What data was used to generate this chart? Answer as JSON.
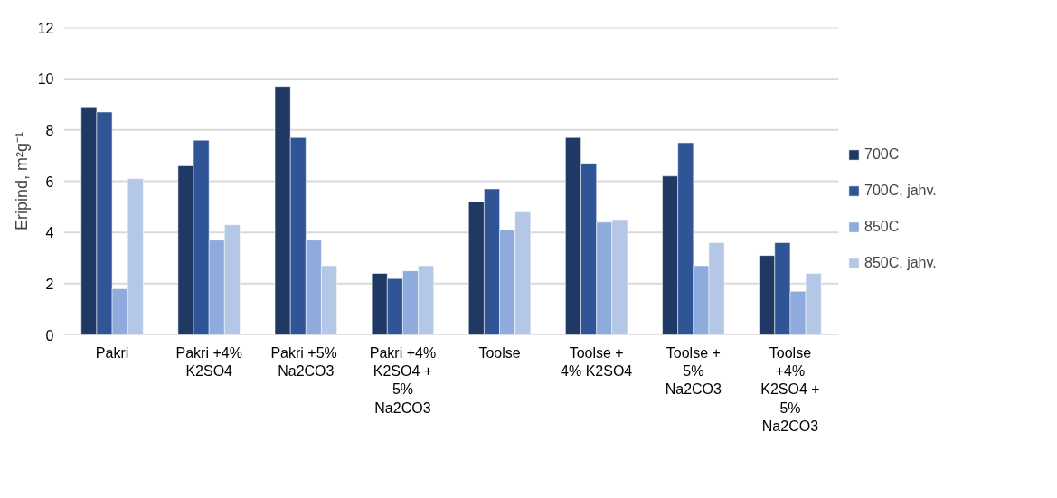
{
  "chart_data": {
    "type": "bar",
    "ylabel": "Eripind, m²g⁻¹",
    "categories": [
      "Pakri",
      "Pakri +4%\nK2SO4",
      "Pakri  +5%\nNa2CO3",
      "Pakri +4%\nK2SO4 +\n5%\nNa2CO3",
      "Toolse",
      "Toolse +\n4% K2SO4",
      "Toolse +\n5%\nNa2CO3",
      "Toolse\n+4%\nK2SO4 +\n5%\nNa2CO3"
    ],
    "series": [
      {
        "name": "700C",
        "color": "#203864",
        "values": [
          8.9,
          6.6,
          9.7,
          2.4,
          5.2,
          7.7,
          6.2,
          3.1
        ]
      },
      {
        "name": "700C, jahv.",
        "color": "#2f5597",
        "values": [
          8.7,
          7.6,
          7.7,
          2.2,
          5.7,
          6.7,
          7.5,
          3.6
        ]
      },
      {
        "name": "850C",
        "color": "#8faadc",
        "values": [
          1.8,
          3.7,
          3.7,
          2.5,
          4.1,
          4.4,
          2.7,
          1.7
        ]
      },
      {
        "name": "850C, jahv.",
        "color": "#b4c7e7",
        "values": [
          6.1,
          4.3,
          2.7,
          2.7,
          4.8,
          4.5,
          3.6,
          2.4
        ]
      }
    ],
    "ylim": [
      0,
      12
    ],
    "yticks": [
      0,
      2,
      4,
      6,
      8,
      10,
      12
    ],
    "grid": "y",
    "legend": "right"
  }
}
